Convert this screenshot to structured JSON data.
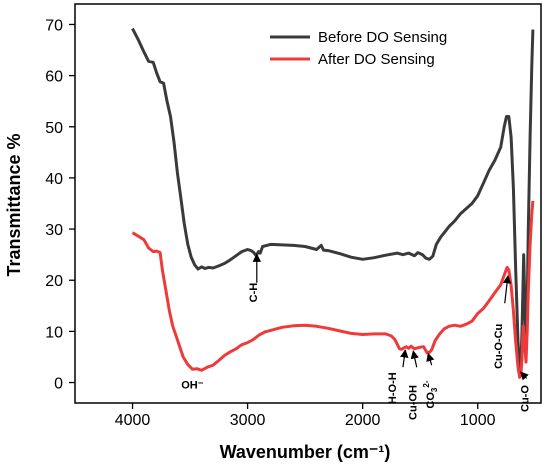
{
  "chart_data": {
    "type": "line",
    "title": "",
    "xlabel": "Wavenumber (cm⁻¹)",
    "ylabel": "Transmittance %",
    "xlim": [
      4500,
      450
    ],
    "ylim": [
      -4,
      74
    ],
    "x_ticks": [
      4000,
      3000,
      2000,
      1000
    ],
    "y_ticks": [
      0,
      10,
      20,
      30,
      40,
      50,
      60,
      70
    ],
    "legend_position": "top-right",
    "grid": false,
    "series": [
      {
        "name": "Before DO Sensing",
        "color": "#3a3a3a",
        "points": [
          [
            4000,
            69.2
          ],
          [
            3950,
            67.0
          ],
          [
            3900,
            64.6
          ],
          [
            3860,
            62.8
          ],
          [
            3820,
            62.6
          ],
          [
            3790,
            60.5
          ],
          [
            3760,
            58.8
          ],
          [
            3730,
            58.5
          ],
          [
            3700,
            55.0
          ],
          [
            3670,
            52.0
          ],
          [
            3640,
            47.0
          ],
          [
            3610,
            41.0
          ],
          [
            3580,
            36.0
          ],
          [
            3550,
            31.0
          ],
          [
            3520,
            27.0
          ],
          [
            3490,
            24.5
          ],
          [
            3460,
            23.0
          ],
          [
            3430,
            22.2
          ],
          [
            3400,
            22.6
          ],
          [
            3370,
            22.3
          ],
          [
            3340,
            22.5
          ],
          [
            3300,
            22.4
          ],
          [
            3250,
            22.8
          ],
          [
            3200,
            23.3
          ],
          [
            3150,
            24.0
          ],
          [
            3100,
            24.8
          ],
          [
            3050,
            25.6
          ],
          [
            3000,
            26.0
          ],
          [
            2970,
            25.8
          ],
          [
            2950,
            25.5
          ],
          [
            2925,
            24.8
          ],
          [
            2905,
            25.6
          ],
          [
            2890,
            25.3
          ],
          [
            2870,
            26.6
          ],
          [
            2800,
            27.0
          ],
          [
            2700,
            26.9
          ],
          [
            2600,
            26.8
          ],
          [
            2500,
            26.6
          ],
          [
            2400,
            26.0
          ],
          [
            2360,
            26.8
          ],
          [
            2340,
            25.9
          ],
          [
            2300,
            25.8
          ],
          [
            2200,
            25.2
          ],
          [
            2100,
            24.5
          ],
          [
            2000,
            24.1
          ],
          [
            1900,
            24.4
          ],
          [
            1800,
            24.9
          ],
          [
            1700,
            25.3
          ],
          [
            1650,
            25.0
          ],
          [
            1600,
            25.3
          ],
          [
            1550,
            24.8
          ],
          [
            1520,
            25.4
          ],
          [
            1480,
            25.0
          ],
          [
            1450,
            24.3
          ],
          [
            1420,
            24.1
          ],
          [
            1390,
            24.7
          ],
          [
            1360,
            27.0
          ],
          [
            1320,
            28.5
          ],
          [
            1280,
            29.6
          ],
          [
            1250,
            30.5
          ],
          [
            1200,
            31.6
          ],
          [
            1150,
            33.0
          ],
          [
            1100,
            34.0
          ],
          [
            1050,
            35.0
          ],
          [
            1000,
            36.5
          ],
          [
            950,
            39.0
          ],
          [
            900,
            41.5
          ],
          [
            850,
            43.5
          ],
          [
            800,
            46.0
          ],
          [
            770,
            50.0
          ],
          [
            750,
            52.0
          ],
          [
            730,
            52.0
          ],
          [
            710,
            48.0
          ],
          [
            690,
            38.0
          ],
          [
            670,
            22.0
          ],
          [
            650,
            8.0
          ],
          [
            635,
            2.5
          ],
          [
            625,
            3.0
          ],
          [
            615,
            10.0
          ],
          [
            600,
            25.0
          ],
          [
            590,
            15.0
          ],
          [
            580,
            8.0
          ],
          [
            570,
            15.0
          ],
          [
            560,
            30.0
          ],
          [
            545,
            48.0
          ],
          [
            530,
            62.0
          ],
          [
            520,
            69.0
          ]
        ]
      },
      {
        "name": "After DO Sensing",
        "color": "#ee3a3a",
        "points": [
          [
            4000,
            29.3
          ],
          [
            3950,
            28.6
          ],
          [
            3900,
            27.9
          ],
          [
            3860,
            26.3
          ],
          [
            3820,
            25.6
          ],
          [
            3790,
            25.7
          ],
          [
            3760,
            25.4
          ],
          [
            3740,
            22.0
          ],
          [
            3710,
            18.0
          ],
          [
            3680,
            14.0
          ],
          [
            3650,
            11.0
          ],
          [
            3620,
            9.0
          ],
          [
            3590,
            7.0
          ],
          [
            3560,
            5.0
          ],
          [
            3520,
            3.5
          ],
          [
            3480,
            2.6
          ],
          [
            3440,
            2.7
          ],
          [
            3400,
            2.4
          ],
          [
            3350,
            3.0
          ],
          [
            3300,
            3.4
          ],
          [
            3250,
            4.3
          ],
          [
            3200,
            5.3
          ],
          [
            3150,
            6.0
          ],
          [
            3100,
            6.6
          ],
          [
            3050,
            7.4
          ],
          [
            3000,
            7.8
          ],
          [
            2950,
            8.4
          ],
          [
            2900,
            9.3
          ],
          [
            2850,
            9.9
          ],
          [
            2800,
            10.2
          ],
          [
            2700,
            10.8
          ],
          [
            2600,
            11.1
          ],
          [
            2500,
            11.2
          ],
          [
            2400,
            11.0
          ],
          [
            2300,
            10.6
          ],
          [
            2200,
            10.1
          ],
          [
            2100,
            9.6
          ],
          [
            2000,
            9.4
          ],
          [
            1900,
            9.5
          ],
          [
            1800,
            9.5
          ],
          [
            1750,
            9.1
          ],
          [
            1720,
            8.4
          ],
          [
            1700,
            7.5
          ],
          [
            1680,
            6.6
          ],
          [
            1660,
            6.5
          ],
          [
            1640,
            6.8
          ],
          [
            1620,
            7.0
          ],
          [
            1600,
            6.7
          ],
          [
            1580,
            7.1
          ],
          [
            1550,
            6.6
          ],
          [
            1500,
            6.9
          ],
          [
            1470,
            7.0
          ],
          [
            1440,
            5.8
          ],
          [
            1420,
            5.9
          ],
          [
            1400,
            6.4
          ],
          [
            1370,
            8.2
          ],
          [
            1330,
            9.5
          ],
          [
            1290,
            10.5
          ],
          [
            1250,
            11.0
          ],
          [
            1200,
            11.2
          ],
          [
            1150,
            11.0
          ],
          [
            1100,
            11.4
          ],
          [
            1050,
            12.0
          ],
          [
            1000,
            13.5
          ],
          [
            950,
            14.5
          ],
          [
            900,
            16.0
          ],
          [
            850,
            17.6
          ],
          [
            800,
            19.1
          ],
          [
            770,
            21.0
          ],
          [
            745,
            22.5
          ],
          [
            730,
            22.0
          ],
          [
            710,
            19.0
          ],
          [
            690,
            14.0
          ],
          [
            670,
            8.0
          ],
          [
            650,
            3.0
          ],
          [
            635,
            1.0
          ],
          [
            625,
            1.5
          ],
          [
            615,
            5.0
          ],
          [
            605,
            11.0
          ],
          [
            590,
            7.0
          ],
          [
            580,
            4.0
          ],
          [
            570,
            10.0
          ],
          [
            560,
            18.0
          ],
          [
            545,
            27.0
          ],
          [
            530,
            33.0
          ],
          [
            520,
            35.5
          ]
        ]
      }
    ],
    "annotations": [
      {
        "text": "C-H",
        "x": 2920,
        "y": 19.5,
        "rotate": -90,
        "arrow_from": [
          2920,
          19.5
        ],
        "arrow_to": [
          2920,
          25.0
        ]
      },
      {
        "text": "OH⁻",
        "x": 3480,
        "y": -1.2,
        "rotate": 0
      },
      {
        "text": "H-O-H",
        "x": 1710,
        "y": 2.0,
        "rotate": -90,
        "arrow_from": [
          1650,
          3.0
        ],
        "arrow_to": [
          1630,
          6.3
        ]
      },
      {
        "text": "Cu-OH",
        "x": 1530,
        "y": -0.5,
        "rotate": -90,
        "arrow_from": [
          1530,
          3.0
        ],
        "arrow_to": [
          1560,
          6.1
        ]
      },
      {
        "text": "CO",
        "x": 1380,
        "y": 0.4,
        "rotate": -90,
        "sub": "3",
        "sup": "2-",
        "arrow_from": [
          1400,
          3.4
        ],
        "arrow_to": [
          1430,
          5.6
        ]
      },
      {
        "text": "Cu-O-Cu",
        "x": 790,
        "y": 11.5,
        "rotate": -90,
        "arrow_from": [
          765,
          15.5
        ],
        "arrow_to": [
          738,
          20.8
        ]
      },
      {
        "text": "Cu-O",
        "x": 560,
        "y": -0.5,
        "rotate": -90,
        "arrow_from": [
          575,
          0.8
        ],
        "arrow_to": [
          625,
          2.0
        ]
      }
    ]
  }
}
